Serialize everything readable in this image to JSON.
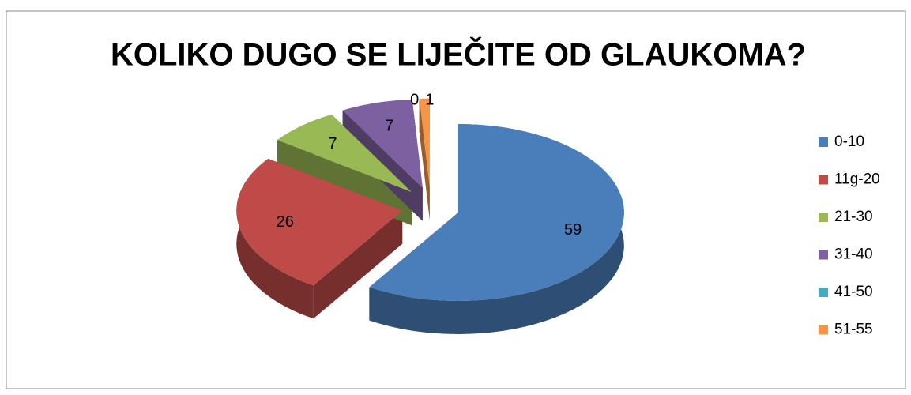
{
  "chart_data": {
    "type": "pie3d",
    "title": "KOLIKO DUGO SE LIJEČITE OD GLAUKOMA?",
    "categories": [
      "0-10",
      "11g-20",
      "21-30",
      "31-40",
      "41-50",
      "51-55"
    ],
    "values": [
      59,
      26,
      7,
      7,
      0,
      1
    ],
    "colors": [
      "#4a7ebb",
      "#be4b48",
      "#98b954",
      "#7d60a0",
      "#46aac5",
      "#f69545"
    ],
    "legend": "right"
  }
}
